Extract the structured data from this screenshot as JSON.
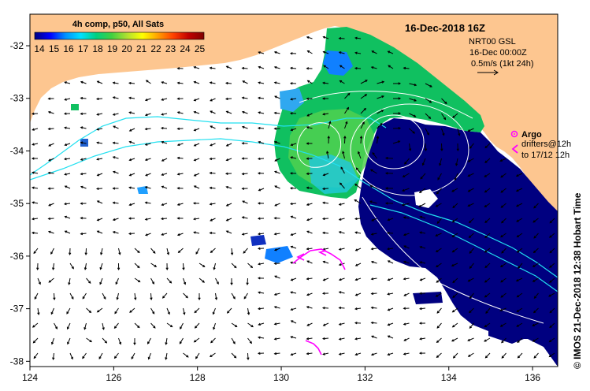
{
  "map": {
    "x_axis": {
      "range": [
        124,
        136.6
      ],
      "ticks": [
        124,
        126,
        128,
        130,
        132,
        134,
        136
      ]
    },
    "y_axis": {
      "range": [
        -38.1,
        -31.4
      ],
      "ticks": [
        -32,
        -33,
        -34,
        -35,
        -36,
        -37,
        -38
      ]
    },
    "colors": {
      "land": "#fdc690",
      "ocean": "#ffffff",
      "frame": "#000000",
      "arrow": "#000000",
      "drifter": "#ff00ff",
      "argo": "#ff00ff",
      "contour": "#ffffff",
      "altimetry_track": "#22e0f0",
      "sst_warm": "#10c060",
      "sst_cold": "#000080"
    }
  },
  "colorbar": {
    "title": "4h comp, p50, All Sats",
    "labels": [
      "14",
      "15",
      "16",
      "17",
      "18",
      "19",
      "20",
      "21",
      "22",
      "23",
      "24",
      "25"
    ],
    "gradient": [
      "#000080",
      "#0000ff",
      "#0090ff",
      "#00e0ff",
      "#00d080",
      "#40d040",
      "#b0e030",
      "#ffff00",
      "#ffa000",
      "#ff4000",
      "#c00000",
      "#800000"
    ]
  },
  "header": {
    "date": "16-Dec-2018 16Z"
  },
  "legend": {
    "product": "NRT00 GSL",
    "valid": "16-Dec 00:00Z",
    "scale": "0.5m/s (1kt 24h)",
    "argo_label": "Argo",
    "drifters_line1": "drifters@12h",
    "drifters_line2": "to 17/12 12h"
  },
  "credit": "© IMOS 21-Dec-2018 12:38 Hobart Time"
}
